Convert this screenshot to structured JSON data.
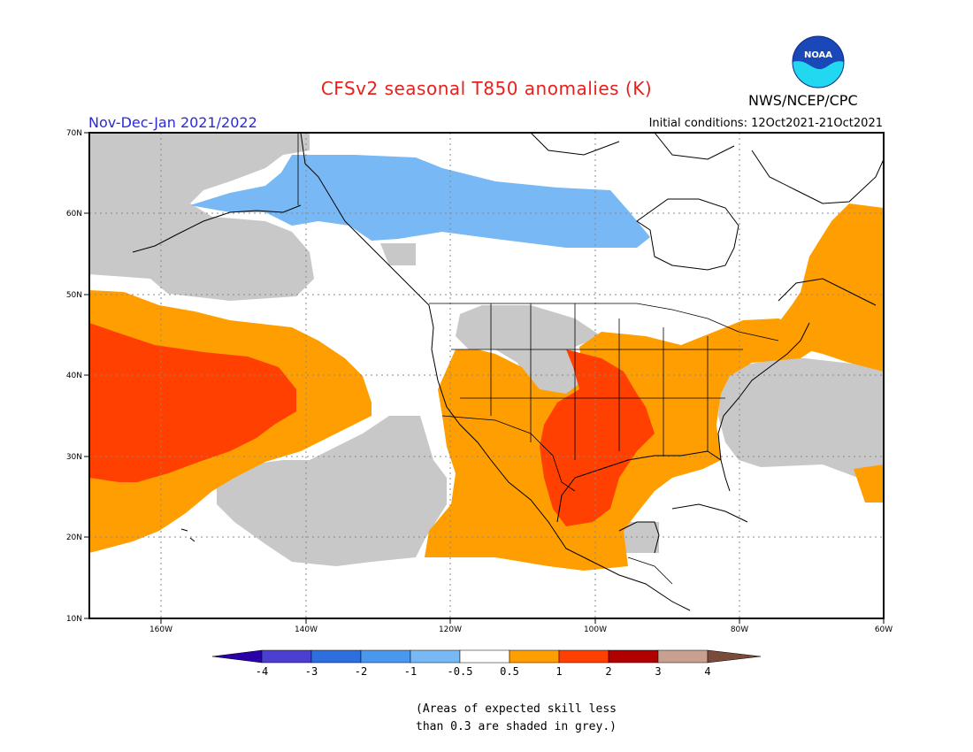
{
  "header": {
    "title": "CFSv2 seasonal T850 anomalies (K)",
    "season": "Nov-Dec-Jan 2021/2022",
    "initial_conditions": "Initial conditions: 12Oct2021-21Oct2021",
    "agency": "NWS/NCEP/CPC",
    "logo_text": "NOAA"
  },
  "map": {
    "lat_labels": [
      "70N",
      "60N",
      "50N",
      "40N",
      "30N",
      "20N",
      "10N"
    ],
    "lon_labels": [
      "160W",
      "140W",
      "120W",
      "100W",
      "80W",
      "60W"
    ],
    "extent": {
      "lon_min": -170,
      "lon_max": -60,
      "lat_min": 10,
      "lat_max": 70
    }
  },
  "legend": {
    "tick_labels": [
      "-4",
      "-3",
      "-2",
      "-1",
      "-0.5",
      "0.5",
      "1",
      "2",
      "3",
      "4"
    ],
    "colors": [
      "#2a00a8",
      "#4a3fd0",
      "#2e6fe0",
      "#4a98ee",
      "#78b8f4",
      "#ffffff",
      "#ff9e00",
      "#ff4000",
      "#b00000",
      "#c8a090",
      "#7a4a3a"
    ]
  },
  "note": {
    "line1": "(Areas of expected skill less",
    "line2": "than 0.3 are shaded in grey.)"
  },
  "colors": {
    "grey": "#c8c8c8",
    "light_blue": "#78b8f4",
    "orange": "#ff9e00",
    "red_orange": "#ff4000"
  }
}
